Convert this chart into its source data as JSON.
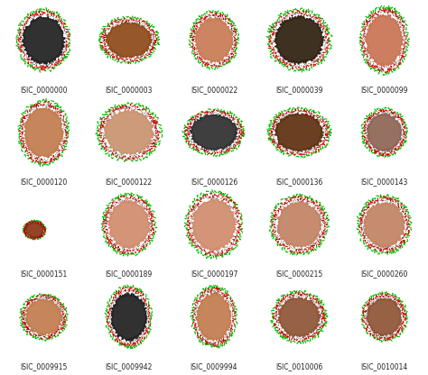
{
  "grid_rows": 4,
  "grid_cols": 5,
  "labels": [
    "ISIC_0000000",
    "ISIC_0000003",
    "ISIC_0000022",
    "ISIC_0000039",
    "ISIC_0000099",
    "ISIC_0000120",
    "ISIC_0000122",
    "ISIC_0000126",
    "ISIC_0000136",
    "ISIC_0000143",
    "ISIC_0000151",
    "ISIC_0000189",
    "ISIC_0000197",
    "ISIC_0000215",
    "ISIC_0000260",
    "ISIC_0009915",
    "ISIC_0009942",
    "ISIC_0009994",
    "ISIC_0010006",
    "ISIC_0010014"
  ],
  "bg_colors": [
    "#6b9fc4",
    "#e8e4df",
    "#dcdcdc",
    "#aec8d5",
    "#f0ede8",
    "#f0ede8",
    "#f0ede8",
    "#d0d0d0",
    "#f0ede8",
    "#f5f3f0",
    "#d8d8d8",
    "#e8e4df",
    "#e8e4df",
    "#e0dce8",
    "#c8c8c8",
    "#f5f0ea",
    "#2a2a2a",
    "#dcdcdc",
    "#c8d8d8",
    "#f5f0e8"
  ],
  "lesion_colors": [
    "#1a1a1a",
    "#8b4513",
    "#c87850",
    "#2a1a0a",
    "#c87050",
    "#c07848",
    "#c8906a",
    "#2a2a2a",
    "#5a2a0a",
    "#8b6050",
    "#8b3010",
    "#d08868",
    "#d08868",
    "#c08060",
    "#c08060",
    "#c07848",
    "#1a1a1a",
    "#c07848",
    "#8b5030",
    "#8b5030"
  ],
  "figure_bg": "#ffffff",
  "label_fontsize": 5.5,
  "label_color": "#222222",
  "green_color": "#00bb00",
  "red_color": "#dd0000",
  "black_dot_color": "#111111",
  "cell_bg": "#ffffff"
}
